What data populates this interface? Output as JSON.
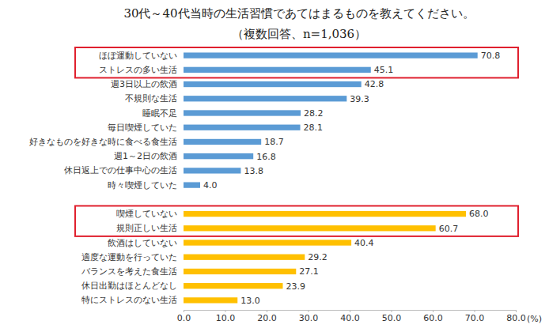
{
  "chart_data": {
    "type": "bar",
    "orientation": "horizontal",
    "title": "30代～40代当時の生活習慣であてはまるものを教えてください。",
    "subtitle": "（複数回答、n=1,036）",
    "xlabel": "(%)",
    "categories": [
      "ほぼ運動していない",
      "ストレスの多い生活",
      "週3日以上の飲酒",
      "不規則な生活",
      "睡眠不足",
      "毎日喫煙していた",
      "好きなものを好きな時に食べる食生活",
      "週1～2日の飲酒",
      "休日返上での仕事中心の生活",
      "時々喫煙していた",
      null,
      "喫煙していない",
      "規則正しい生活",
      "飲酒はしていない",
      "適度な運動を行っていた",
      "バランスを考えた食生活",
      "休日出勤はほとんどなし",
      "特にストレスのない生活"
    ],
    "values": [
      70.8,
      45.1,
      42.8,
      39.3,
      28.2,
      28.1,
      18.7,
      16.8,
      13.8,
      4.0,
      null,
      68.0,
      60.7,
      40.4,
      29.2,
      27.1,
      23.9,
      13.0
    ],
    "value_labels": [
      "70.8",
      "45.1",
      "42.8",
      "39.3",
      "28.2",
      "28.1",
      "18.7",
      "16.8",
      "13.8",
      "4.0",
      null,
      "68.0",
      "60.7",
      "40.4",
      "29.2",
      "27.1",
      "23.9",
      "13.0"
    ],
    "colors": [
      "#5b9bd5",
      "#5b9bd5",
      "#5b9bd5",
      "#5b9bd5",
      "#5b9bd5",
      "#5b9bd5",
      "#5b9bd5",
      "#5b9bd5",
      "#5b9bd5",
      "#5b9bd5",
      null,
      "#ffc000",
      "#ffc000",
      "#ffc000",
      "#ffc000",
      "#ffc000",
      "#ffc000",
      "#ffc000"
    ],
    "xlim": [
      0,
      80
    ],
    "xticks": [
      {
        "value": 0,
        "label": "0.0"
      },
      {
        "value": 10,
        "label": "10.0"
      },
      {
        "value": 20,
        "label": "20.0"
      },
      {
        "value": 30,
        "label": "30.0"
      },
      {
        "value": 40,
        "label": "40.0"
      },
      {
        "value": 50,
        "label": "50.0"
      },
      {
        "value": 60,
        "label": "60.0"
      },
      {
        "value": 70,
        "label": "70.0"
      },
      {
        "value": 80,
        "label": "80.0"
      }
    ],
    "grid": false,
    "data_labels": true
  }
}
